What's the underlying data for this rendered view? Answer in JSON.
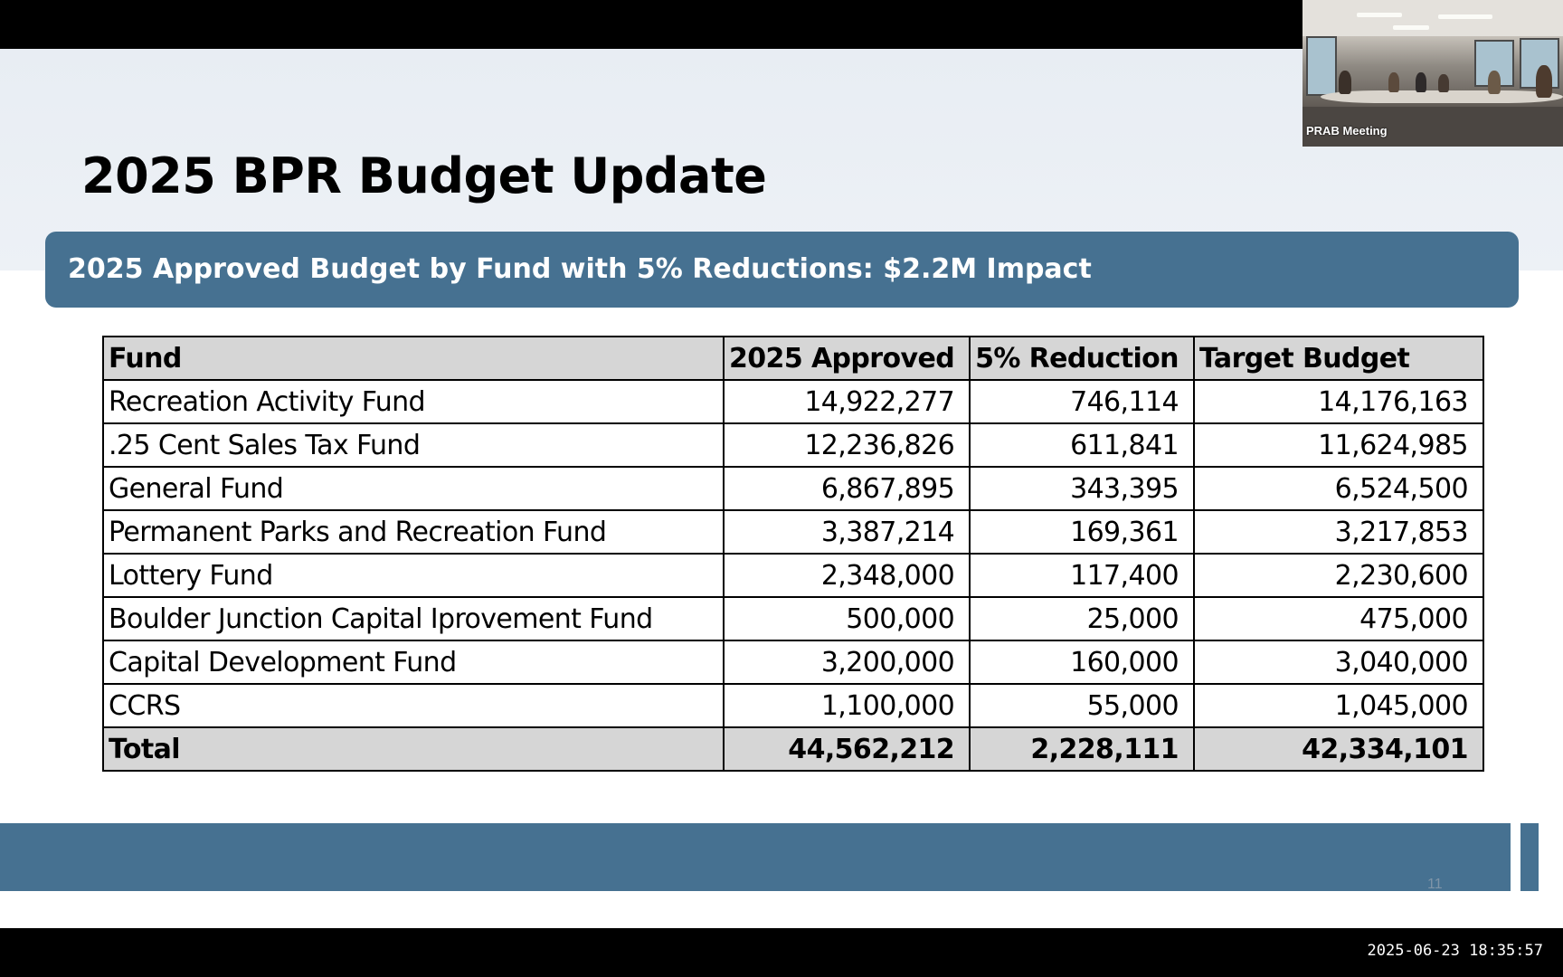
{
  "slide": {
    "title": "2025 BPR Budget Update",
    "subtitle": "2025 Approved Budget by Fund with 5% Reductions: $2.2M Impact",
    "slide_number": "11",
    "accent_color": "#467191"
  },
  "table": {
    "headers": [
      "Fund",
      "2025 Approved",
      "5% Reduction",
      "Target  Budget"
    ],
    "rows": [
      [
        "Recreation Activity Fund",
        "14,922,277",
        "746,114",
        "14,176,163"
      ],
      [
        ".25 Cent Sales Tax Fund",
        "12,236,826",
        "611,841",
        "11,624,985"
      ],
      [
        "General Fund",
        "6,867,895",
        "343,395",
        "6,524,500"
      ],
      [
        "Permanent Parks and Recreation Fund",
        "3,387,214",
        "169,361",
        "3,217,853"
      ],
      [
        "Lottery Fund",
        "2,348,000",
        "117,400",
        "2,230,600"
      ],
      [
        "Boulder Junction Capital Iprovement Fund",
        "500,000",
        "25,000",
        "475,000"
      ],
      [
        "Capital Development Fund",
        "3,200,000",
        "160,000",
        "3,040,000"
      ],
      [
        "CCRS",
        "1,100,000",
        "55,000",
        "1,045,000"
      ]
    ],
    "total": [
      "Total",
      "44,562,212",
      "2,228,111",
      "42,334,101"
    ]
  },
  "video": {
    "label": "PRAB Meeting"
  },
  "recording": {
    "timestamp": "2025-06-23  18:35:57"
  }
}
